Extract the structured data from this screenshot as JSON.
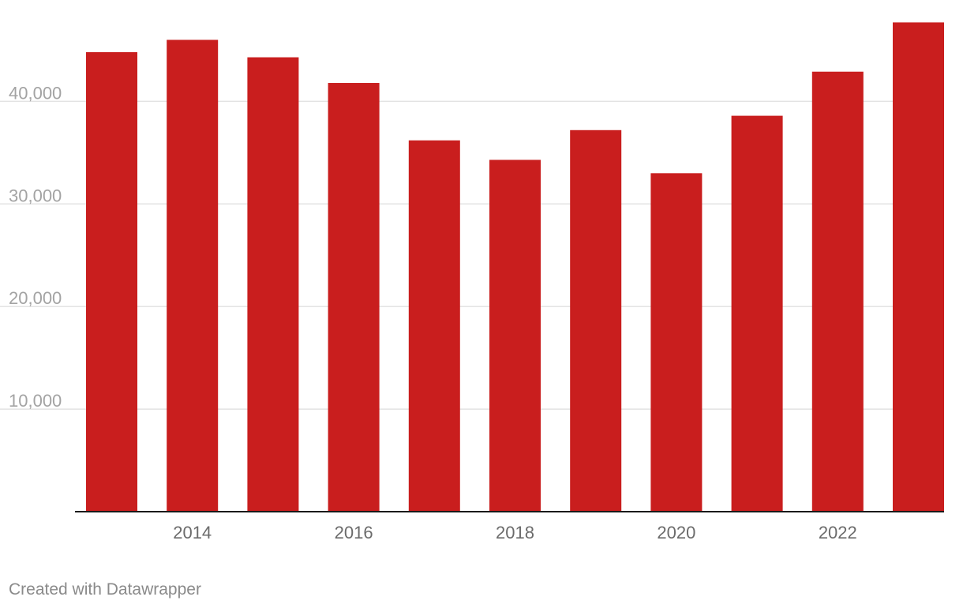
{
  "chart_data": {
    "type": "bar",
    "categories": [
      "2013",
      "2014",
      "2015",
      "2016",
      "2017",
      "2018",
      "2019",
      "2020",
      "2021",
      "2022",
      "2023"
    ],
    "values": [
      44800,
      46000,
      44300,
      41800,
      36200,
      34300,
      37200,
      33000,
      38600,
      42900,
      47700
    ],
    "x_tick_labels": [
      "2014",
      "2016",
      "2018",
      "2020",
      "2022"
    ],
    "y_tick_labels": [
      "10,000",
      "20,000",
      "30,000",
      "40,000"
    ],
    "y_ticks": [
      10000,
      20000,
      30000,
      40000
    ],
    "ylim": [
      0,
      48500
    ],
    "grid": true,
    "bar_color": "#c91e1e",
    "title": "",
    "xlabel": "",
    "ylabel": ""
  },
  "footer": {
    "credit": "Created with Datawrapper"
  }
}
